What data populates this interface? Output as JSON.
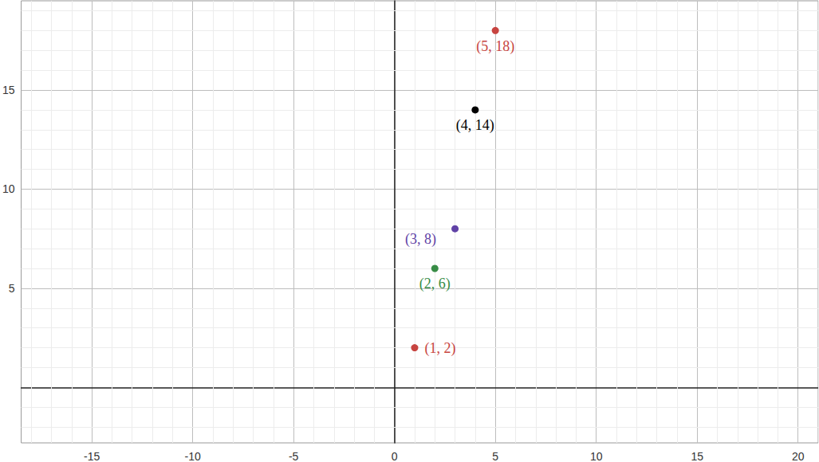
{
  "chart_data": {
    "type": "scatter",
    "series": [
      {
        "color": "#c74440",
        "marker": "circle",
        "x": [
          1
        ],
        "values": [
          2
        ],
        "value_labels": [
          "(1, 2)"
        ]
      },
      {
        "color": "#388c46",
        "marker": "circle",
        "x": [
          2
        ],
        "values": [
          6
        ],
        "value_labels": [
          "(2, 6)"
        ]
      },
      {
        "color": "#6042a6",
        "marker": "circle",
        "x": [
          3
        ],
        "values": [
          8
        ],
        "value_labels": [
          "(3, 8)"
        ]
      },
      {
        "color": "#000000",
        "marker": "circle",
        "x": [
          4
        ],
        "values": [
          14
        ],
        "value_labels": [
          "(4, 14)"
        ]
      },
      {
        "color": "#c74440",
        "marker": "circle",
        "x": [
          5
        ],
        "values": [
          18
        ],
        "value_labels": [
          "(5, 18)"
        ]
      }
    ],
    "xlim": [
      -18.5,
      21
    ],
    "xticks": [
      -15,
      -10,
      -5,
      0,
      5,
      10,
      15,
      20
    ],
    "ylim": [
      -2.8,
      19.5
    ],
    "yticks": [
      5,
      10,
      15
    ],
    "grid": true,
    "data_labels": true
  }
}
